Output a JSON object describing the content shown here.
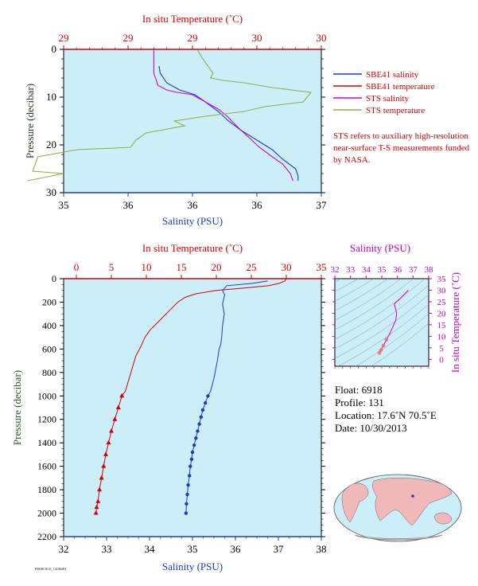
{
  "chart_data": [
    {
      "type": "line",
      "panel": "top",
      "title": "",
      "x_top_label": "In situ Temperature (˚C)",
      "x_top_ticks": [
        "29",
        "29",
        "29",
        "30",
        "30"
      ],
      "x_bottom_label": "Salinity (PSU)",
      "x_bottom_ticks": [
        "35",
        "36",
        "36",
        "36",
        "37"
      ],
      "ylabel": "Pressure (decibar)",
      "y_ticks": [
        "0",
        "10",
        "20",
        "30"
      ],
      "ylim": [
        0,
        30
      ],
      "x_bottom_range": [
        35.0,
        37.0
      ],
      "x_top_range": [
        29.0,
        30.0
      ],
      "series": [
        {
          "name": "SBE41 salinity",
          "color": "#1a3cc8",
          "axis": "salinity",
          "x": [
            36.82,
            36.82,
            36.8,
            36.7,
            36.62,
            36.5,
            36.38,
            36.28,
            36.2,
            36.1,
            36.02,
            35.9,
            35.8,
            35.75,
            35.74
          ],
          "y": [
            27.5,
            26.5,
            25.0,
            23.0,
            21.0,
            19.0,
            17.0,
            15.0,
            13.0,
            11.0,
            9.5,
            8.5,
            7.0,
            5.0,
            3.5
          ]
        },
        {
          "name": "SBE41 temperature",
          "color": "#d40000",
          "axis": "temperature",
          "x": [],
          "y": []
        },
        {
          "name": "STS salinity",
          "color": "#d000d0",
          "axis": "salinity",
          "x": [
            35.7,
            35.7,
            35.72,
            35.73,
            35.8,
            35.88,
            36.0,
            36.1,
            36.2,
            36.27,
            36.36,
            36.44,
            36.52,
            36.62,
            36.7,
            36.76,
            36.78
          ],
          "y": [
            0.2,
            5.0,
            6.5,
            7.5,
            8.5,
            9.0,
            9.5,
            11.0,
            12.5,
            14.0,
            16.5,
            18.5,
            20.5,
            22.5,
            24.0,
            26.0,
            27.5
          ]
        },
        {
          "name": "STS temperature",
          "color": "#8fb04a",
          "axis": "temperature",
          "x": [
            29.52,
            29.54,
            29.56,
            29.58,
            29.57,
            29.62,
            29.7,
            29.81,
            29.96,
            29.93,
            29.78,
            29.7,
            29.55,
            29.43,
            29.47,
            29.32,
            29.28,
            29.26,
            29.05,
            28.9,
            28.88,
            29.0,
            28.86
          ],
          "y": [
            0.2,
            2.0,
            3.5,
            5.0,
            6.0,
            6.5,
            7.0,
            8.0,
            9.0,
            11.0,
            12.0,
            13.0,
            14.0,
            15.0,
            16.0,
            17.5,
            19.0,
            20.5,
            21.0,
            22.5,
            25.5,
            26.0,
            27.5
          ]
        }
      ],
      "legend": [
        {
          "label": "SBE41 salinity",
          "color": "#1a3cc8"
        },
        {
          "label": "SBE41 temperature",
          "color": "#d40000"
        },
        {
          "label": "STS salinity",
          "color": "#d000d0"
        },
        {
          "label": "STS temperature",
          "color": "#8fb04a"
        }
      ],
      "legend_note": "STS refers to auxiliary high-resolution near-surface T-S measurements funded by NASA."
    },
    {
      "type": "line",
      "panel": "bottom",
      "title": "",
      "x_top_label": "In situ Temperature (˚C)",
      "x_top_ticks": [
        "0",
        "5",
        "10",
        "15",
        "20",
        "25",
        "30",
        "35"
      ],
      "x_bottom_label": "Salinity (PSU)",
      "x_bottom_ticks": [
        "32",
        "33",
        "34",
        "35",
        "36",
        "37",
        "38"
      ],
      "ylabel": "Pressure (decibar)",
      "y_ticks": [
        "0",
        "200",
        "400",
        "600",
        "800",
        "1000",
        "1200",
        "1400",
        "1600",
        "1800",
        "2000",
        "2200"
      ],
      "ylim": [
        0,
        2200
      ],
      "x_bottom_range": [
        32,
        38
      ],
      "x_top_range": [
        0,
        35
      ],
      "series": [
        {
          "name": "Temperature",
          "color": "#d40000",
          "axis": "temperature",
          "x": [
            30.0,
            29.8,
            29.0,
            27.5,
            24.0,
            20.0,
            17.0,
            15.5,
            14.5,
            13.5,
            12.5,
            11.5,
            10.5,
            9.8,
            9.2,
            8.5,
            8.0,
            7.5,
            7.0,
            6.5,
            6.0,
            5.5,
            5.0,
            4.6,
            4.2,
            3.9,
            3.6,
            3.3,
            3.1,
            2.9,
            2.8
          ],
          "y": [
            0,
            20,
            40,
            60,
            80,
            100,
            130,
            160,
            200,
            260,
            320,
            380,
            440,
            500,
            580,
            660,
            760,
            860,
            960,
            1000,
            1100,
            1200,
            1300,
            1400,
            1500,
            1600,
            1700,
            1800,
            1900,
            1950,
            2000
          ]
        },
        {
          "name": "Salinity",
          "color": "#1a3cc8",
          "axis": "salinity",
          "x": [
            36.75,
            36.4,
            35.8,
            35.7,
            35.75,
            35.72,
            35.7,
            35.74,
            35.7,
            35.68,
            35.66,
            35.62,
            35.58,
            35.5,
            35.42,
            35.36,
            35.3,
            35.24,
            35.2,
            35.16,
            35.12,
            35.08,
            35.04,
            35.0,
            34.98,
            34.95,
            34.93,
            34.9,
            34.88,
            34.86,
            34.85
          ],
          "y": [
            20,
            40,
            60,
            100,
            140,
            180,
            220,
            300,
            400,
            500,
            560,
            600,
            700,
            850,
            960,
            1000,
            1060,
            1120,
            1180,
            1240,
            1300,
            1360,
            1420,
            1480,
            1540,
            1600,
            1680,
            1760,
            1840,
            1920,
            2000
          ]
        }
      ]
    },
    {
      "type": "line",
      "panel": "ts-diagram",
      "title": "",
      "x_top_label": "Salinity (PSU)",
      "x_top_ticks": [
        "32",
        "33",
        "34",
        "35",
        "36",
        "37",
        "38"
      ],
      "y_right_label": "In situ Temperature (˚C)",
      "y_right_ticks": [
        "0",
        "5",
        "10",
        "15",
        "20",
        "25",
        "30",
        "35"
      ],
      "x_range": [
        32,
        38
      ],
      "y_range": [
        -3,
        35
      ],
      "series": [
        {
          "name": "T-S",
          "color": "#d000d0",
          "x": [
            36.7,
            36.55,
            36.2,
            35.8,
            35.95,
            35.9,
            35.7,
            35.5,
            35.3,
            35.1,
            34.95,
            34.85
          ],
          "y": [
            30.0,
            29.0,
            26.5,
            24.0,
            20.0,
            17.0,
            14.0,
            11.0,
            8.5,
            6.0,
            4.0,
            2.8
          ]
        }
      ]
    }
  ],
  "info": {
    "float": "Float: 6918",
    "profile": "Profile: 131",
    "location": "Location: 17.6˚N 70.5˚E",
    "date": "Date: 10/30/2013"
  },
  "map_label": "world-map",
  "footer_code": "F6918C0131_131002F4"
}
